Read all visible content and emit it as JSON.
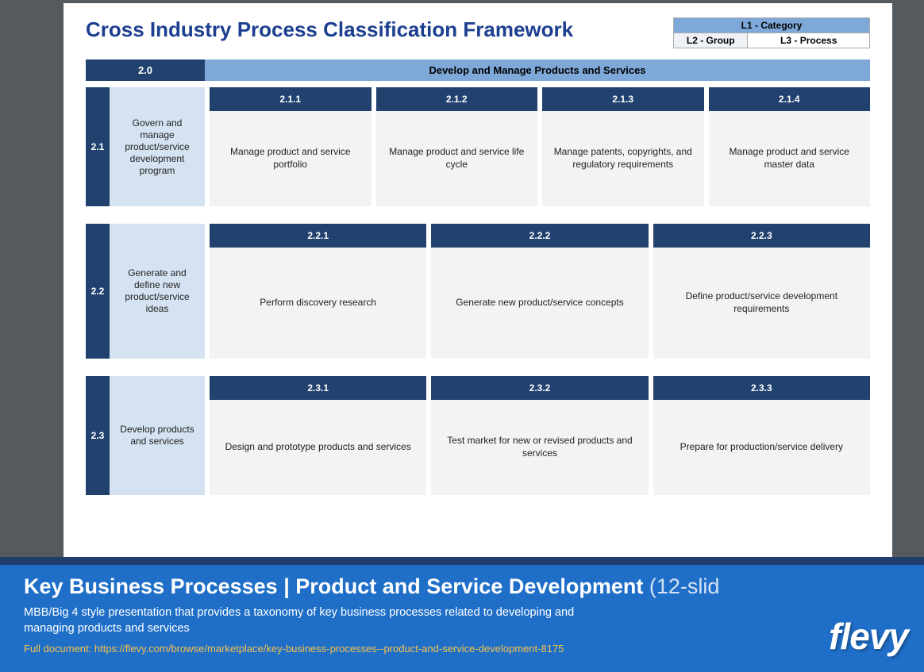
{
  "colors": {
    "page_bg": "#555a5f",
    "slide_bg": "#ffffff",
    "title_color": "#1d3f90",
    "dark_blue": "#21426f",
    "mid_blue": "#7ea8d8",
    "light_blue": "#d5e2f1",
    "process_bg": "#f3f3f3",
    "banner_blue": "#1f6fc8",
    "banner_top": "#1f3e6e",
    "link_color": "#f5c24b"
  },
  "title": "Cross Industry Process Classification Framework",
  "legend": {
    "l1": "L1 - Category",
    "l2": "L2 - Group",
    "l3": "L3 - Process"
  },
  "category": {
    "code": "2.0",
    "title": "Develop and Manage Products and Services"
  },
  "groups": [
    {
      "code": "2.1",
      "desc": "Govern and manage product/service development program",
      "processes": [
        {
          "code": "2.1.1",
          "desc": "Manage product and service portfolio"
        },
        {
          "code": "2.1.2",
          "desc": "Manage product and service life cycle"
        },
        {
          "code": "2.1.3",
          "desc": "Manage patents, copyrights, and regulatory requirements"
        },
        {
          "code": "2.1.4",
          "desc": "Manage product and service master data"
        }
      ]
    },
    {
      "code": "2.2",
      "desc": "Generate and define new product/service ideas",
      "processes": [
        {
          "code": "2.2.1",
          "desc": "Perform discovery research"
        },
        {
          "code": "2.2.2",
          "desc": "Generate new product/service concepts"
        },
        {
          "code": "2.2.3",
          "desc": "Define product/service development requirements"
        }
      ]
    },
    {
      "code": "2.3",
      "desc": "Develop products and services",
      "processes": [
        {
          "code": "2.3.1",
          "desc": "Design and prototype products and services"
        },
        {
          "code": "2.3.2",
          "desc": "Test market for new or revised products and services"
        },
        {
          "code": "2.3.3",
          "desc": "Prepare for production/service delivery"
        }
      ]
    }
  ],
  "banner": {
    "title_main": "Key Business Processes | Product and Service Development",
    "title_suffix": " (12-slid",
    "subtitle": "MBB/Big 4 style presentation that provides a taxonomy of key business processes related to developing and managing products and services",
    "link_label": "Full document: https://flevy.com/browse/marketplace/key-business-processes--product-and-service-development-8175",
    "logo": "flevy"
  }
}
